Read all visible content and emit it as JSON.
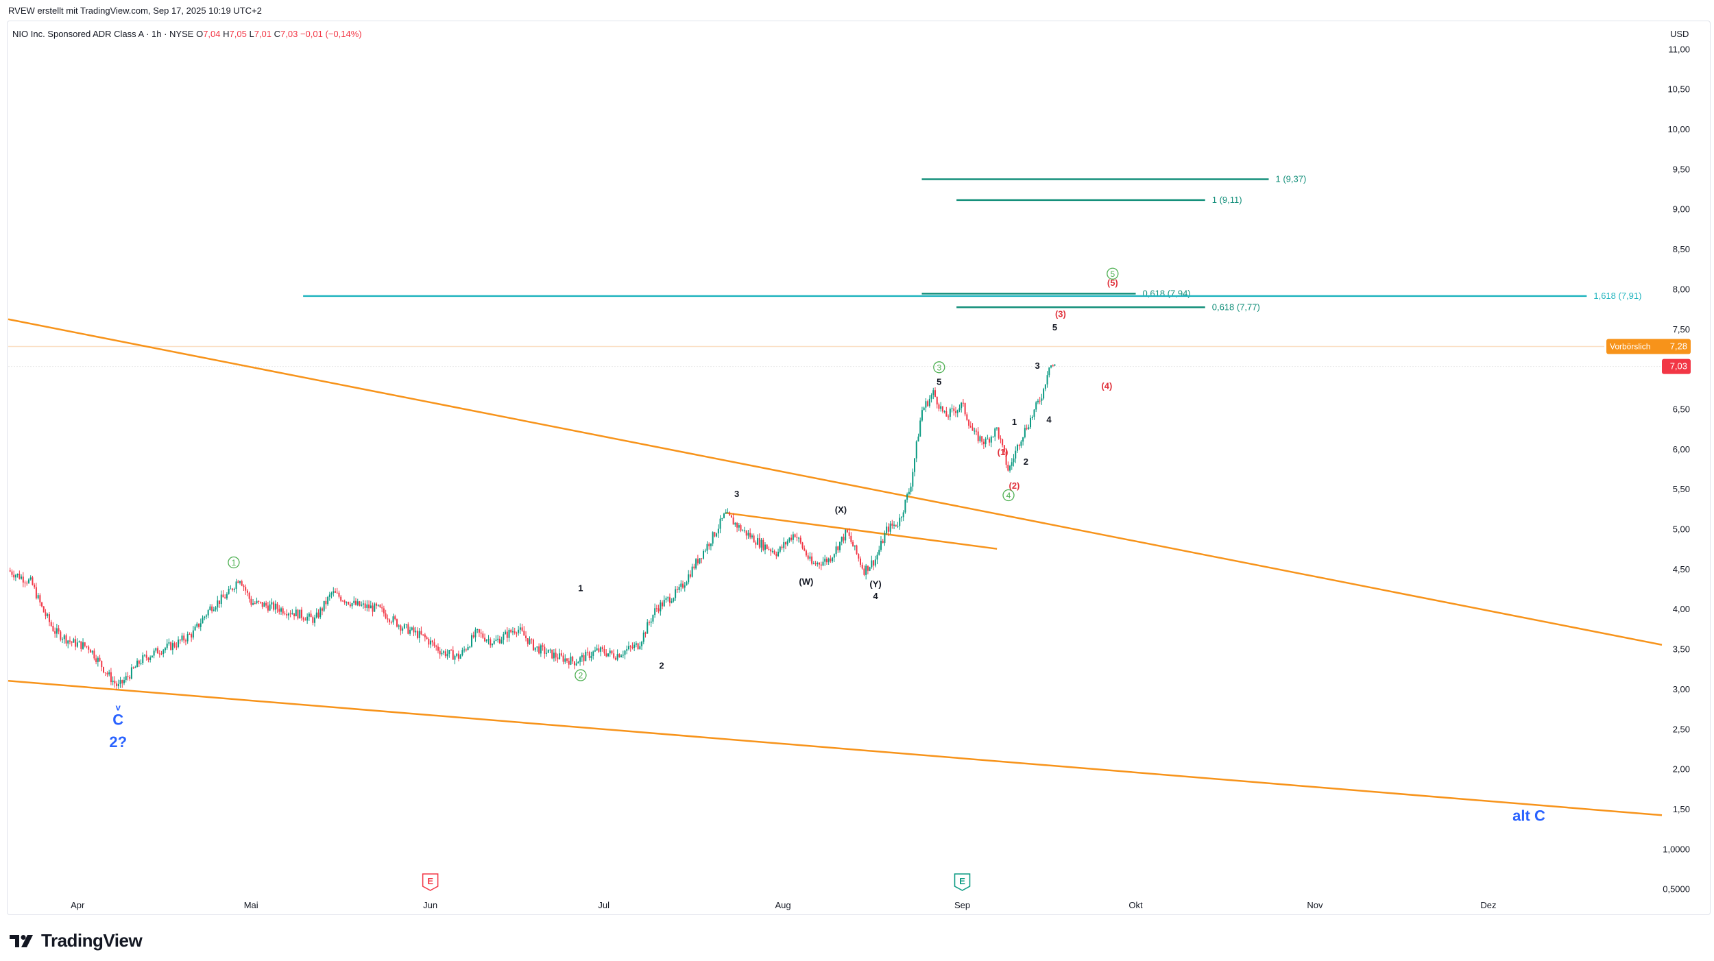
{
  "header": {
    "created_by": "RVEW erstellt mit TradingView.com, Sep 17, 2025 10:19 UTC+2"
  },
  "symbol": {
    "name": "NIO Inc. Sponsored ADR Class A · 1h · NYSE",
    "open_label": "O",
    "open": "7,04",
    "high_label": "H",
    "high": "7,05",
    "low_label": "L",
    "low": "7,01",
    "close_label": "C",
    "close": "7,03",
    "change": "−0,01 (−0,14%)"
  },
  "currency": "USD",
  "logo_text": "TradingView",
  "price_tags": {
    "prev_close_label": "Vorbörslich",
    "prev_close_value": "7,28",
    "last_value": "7,03"
  },
  "colors": {
    "orange": "#f7931a",
    "teal": "#138f7a",
    "cyan": "#22b5bf",
    "green_wave": "#4caf50",
    "red_wave": "#e0323c",
    "blue_label": "#2962ff",
    "candle_up": "#089981",
    "candle_down": "#f23645",
    "last_price": "#f23645"
  },
  "chart_data": {
    "type": "candlestick",
    "title": "",
    "xlabel": "",
    "ylabel": "",
    "y_axis_ticks": [
      "11,00",
      "10,50",
      "10,00",
      "9,50",
      "9,00",
      "8,50",
      "8,00",
      "7,50",
      "7,00",
      "6,50",
      "6,00",
      "5,50",
      "5,00",
      "4,50",
      "4,00",
      "3,50",
      "3,00",
      "2,50",
      "2,00",
      "1,50",
      "1,0000",
      "0,5000"
    ],
    "ylim": [
      0.3,
      11.2
    ],
    "x_axis_ticks": [
      "Apr",
      "Mai",
      "Jun",
      "Jul",
      "Aug",
      "Sep",
      "Okt",
      "Nov",
      "Dez"
    ],
    "xlim": [
      "2025-03-20",
      "2025-12-31"
    ],
    "price_path": [
      [
        "2025-03-20",
        4.48
      ],
      [
        "2025-03-24",
        4.33
      ],
      [
        "2025-03-26",
        3.98
      ],
      [
        "2025-03-28",
        3.72
      ],
      [
        "2025-03-31",
        3.58
      ],
      [
        "2025-04-03",
        3.52
      ],
      [
        "2025-04-06",
        3.2
      ],
      [
        "2025-04-08",
        3.02
      ],
      [
        "2025-04-10",
        3.18
      ],
      [
        "2025-04-12",
        3.36
      ],
      [
        "2025-04-15",
        3.48
      ],
      [
        "2025-04-18",
        3.56
      ],
      [
        "2025-04-21",
        3.7
      ],
      [
        "2025-04-24",
        4.02
      ],
      [
        "2025-04-27",
        4.18
      ],
      [
        "2025-04-29",
        4.4
      ],
      [
        "2025-05-01",
        4.08
      ],
      [
        "2025-05-05",
        4.02
      ],
      [
        "2025-05-09",
        3.94
      ],
      [
        "2025-05-12",
        3.86
      ],
      [
        "2025-05-15",
        4.2
      ],
      [
        "2025-05-19",
        4.05
      ],
      [
        "2025-05-23",
        4.0
      ],
      [
        "2025-05-27",
        3.78
      ],
      [
        "2025-05-31",
        3.64
      ],
      [
        "2025-06-03",
        3.46
      ],
      [
        "2025-06-06",
        3.4
      ],
      [
        "2025-06-09",
        3.7
      ],
      [
        "2025-06-12",
        3.58
      ],
      [
        "2025-06-16",
        3.76
      ],
      [
        "2025-06-19",
        3.52
      ],
      [
        "2025-06-23",
        3.4
      ],
      [
        "2025-06-26",
        3.34
      ],
      [
        "2025-06-30",
        3.48
      ],
      [
        "2025-07-03",
        3.42
      ],
      [
        "2025-07-07",
        3.55
      ],
      [
        "2025-07-10",
        4.0
      ],
      [
        "2025-07-14",
        4.22
      ],
      [
        "2025-07-17",
        4.58
      ],
      [
        "2025-07-20",
        4.92
      ],
      [
        "2025-07-22",
        5.18
      ],
      [
        "2025-07-25",
        4.98
      ],
      [
        "2025-07-28",
        4.82
      ],
      [
        "2025-07-31",
        4.7
      ],
      [
        "2025-08-03",
        4.95
      ],
      [
        "2025-08-06",
        4.55
      ],
      [
        "2025-08-09",
        4.62
      ],
      [
        "2025-08-12",
        4.96
      ],
      [
        "2025-08-15",
        4.48
      ],
      [
        "2025-08-17",
        4.62
      ],
      [
        "2025-08-19",
        5.0
      ],
      [
        "2025-08-21",
        5.08
      ],
      [
        "2025-08-23",
        5.52
      ],
      [
        "2025-08-25",
        6.48
      ],
      [
        "2025-08-27",
        6.7
      ],
      [
        "2025-08-29",
        6.4
      ],
      [
        "2025-09-01",
        6.55
      ],
      [
        "2025-09-03",
        6.18
      ],
      [
        "2025-09-05",
        6.08
      ],
      [
        "2025-09-07",
        6.25
      ],
      [
        "2025-09-09",
        5.72
      ],
      [
        "2025-09-11",
        6.12
      ],
      [
        "2025-09-13",
        6.4
      ],
      [
        "2025-09-15",
        6.72
      ],
      [
        "2025-09-16",
        7.06
      ],
      [
        "2025-09-17",
        7.03
      ]
    ],
    "last_price": 7.03,
    "premarket_price": 7.28,
    "horizontal_levels": [
      {
        "label": "1 (9,37)",
        "value": 9.37,
        "from": "2025-08-25",
        "to": "2025-10-24",
        "color": "teal"
      },
      {
        "label": "1 (9,11)",
        "value": 9.11,
        "from": "2025-08-31",
        "to": "2025-10-13",
        "color": "teal"
      },
      {
        "label": "0,618 (7,94)",
        "value": 7.94,
        "from": "2025-08-25",
        "to": "2025-10-01",
        "color": "teal"
      },
      {
        "label": "0,618 (7,77)",
        "value": 7.77,
        "from": "2025-08-31",
        "to": "2025-10-13",
        "color": "teal"
      },
      {
        "label": "1,618 (7,91)",
        "value": 7.91,
        "from": "2025-05-10",
        "to": "2025-12-18",
        "color": "cyan"
      }
    ],
    "trendlines": [
      {
        "name": "upper-channel",
        "from": [
          "2025-03-20",
          7.62
        ],
        "to": [
          "2025-12-31",
          3.55
        ]
      },
      {
        "name": "lower-channel",
        "from": [
          "2025-03-20",
          3.1
        ],
        "to": [
          "2025-12-31",
          1.42
        ]
      },
      {
        "name": "correction-line",
        "from": [
          "2025-07-22",
          5.2
        ],
        "to": [
          "2025-09-07",
          4.75
        ]
      }
    ],
    "wave_labels": [
      {
        "text": "1",
        "shape": "circle",
        "color": "green",
        "at": [
          "2025-04-28",
          4.58
        ]
      },
      {
        "text": "2",
        "shape": "circle",
        "color": "green",
        "at": [
          "2025-06-27",
          3.17
        ]
      },
      {
        "text": "3",
        "shape": "circle",
        "color": "green",
        "at": [
          "2025-08-28",
          7.02
        ]
      },
      {
        "text": "4",
        "shape": "circle",
        "color": "green",
        "at": [
          "2025-09-09",
          5.42
        ]
      },
      {
        "text": "5",
        "shape": "circle",
        "color": "green",
        "at": [
          "2025-09-27",
          8.19
        ]
      },
      {
        "text": "1",
        "shape": "plain",
        "color": "black",
        "at": [
          "2025-06-27",
          4.22
        ]
      },
      {
        "text": "2",
        "shape": "plain",
        "color": "black",
        "at": [
          "2025-07-11",
          3.25
        ]
      },
      {
        "text": "3",
        "shape": "plain",
        "color": "black",
        "at": [
          "2025-07-24",
          5.4
        ]
      },
      {
        "text": "(X)",
        "shape": "plain",
        "color": "black",
        "at": [
          "2025-08-11",
          5.2
        ]
      },
      {
        "text": "(W)",
        "shape": "plain",
        "color": "black",
        "at": [
          "2025-08-05",
          4.3
        ]
      },
      {
        "text": "(Y)",
        "shape": "plain",
        "color": "black",
        "at": [
          "2025-08-17",
          4.27
        ]
      },
      {
        "text": "4",
        "shape": "plain",
        "color": "black",
        "at": [
          "2025-08-17",
          4.12
        ]
      },
      {
        "text": "5",
        "shape": "plain",
        "color": "black",
        "at": [
          "2025-08-28",
          6.8
        ]
      },
      {
        "text": "1",
        "shape": "plain",
        "color": "black",
        "at": [
          "2025-09-10",
          6.3
        ]
      },
      {
        "text": "2",
        "shape": "plain",
        "color": "black",
        "at": [
          "2025-09-12",
          5.8
        ]
      },
      {
        "text": "3",
        "shape": "plain",
        "color": "black",
        "at": [
          "2025-09-14",
          7.0
        ]
      },
      {
        "text": "4",
        "shape": "plain",
        "color": "black",
        "at": [
          "2025-09-16",
          6.33
        ]
      },
      {
        "text": "5",
        "shape": "plain",
        "color": "black",
        "at": [
          "2025-09-17",
          7.48
        ]
      },
      {
        "text": "(1)",
        "shape": "plain",
        "color": "red",
        "at": [
          "2025-09-08",
          5.92
        ]
      },
      {
        "text": "(2)",
        "shape": "plain",
        "color": "red",
        "at": [
          "2025-09-10",
          5.5
        ]
      },
      {
        "text": "(3)",
        "shape": "plain",
        "color": "red",
        "at": [
          "2025-09-18",
          7.65
        ]
      },
      {
        "text": "(4)",
        "shape": "plain",
        "color": "red",
        "at": [
          "2025-09-26",
          6.75
        ]
      },
      {
        "text": "(5)",
        "shape": "plain",
        "color": "red",
        "at": [
          "2025-09-27",
          8.04
        ]
      },
      {
        "text": "v",
        "shape": "plain",
        "color": "blue",
        "at": [
          "2025-04-08",
          2.73
        ]
      },
      {
        "text": "C",
        "shape": "big",
        "color": "blue",
        "at": [
          "2025-04-08",
          2.55
        ]
      },
      {
        "text": "2?",
        "shape": "big",
        "color": "blue",
        "at": [
          "2025-04-08",
          2.27
        ]
      },
      {
        "text": "alt C",
        "shape": "big",
        "color": "blue",
        "at": [
          "2025-12-08",
          1.35
        ]
      }
    ],
    "event_markers": [
      {
        "text": "E",
        "color": "red",
        "at": "2025-06-01"
      },
      {
        "text": "E",
        "color": "teal",
        "at": "2025-09-01"
      }
    ]
  }
}
